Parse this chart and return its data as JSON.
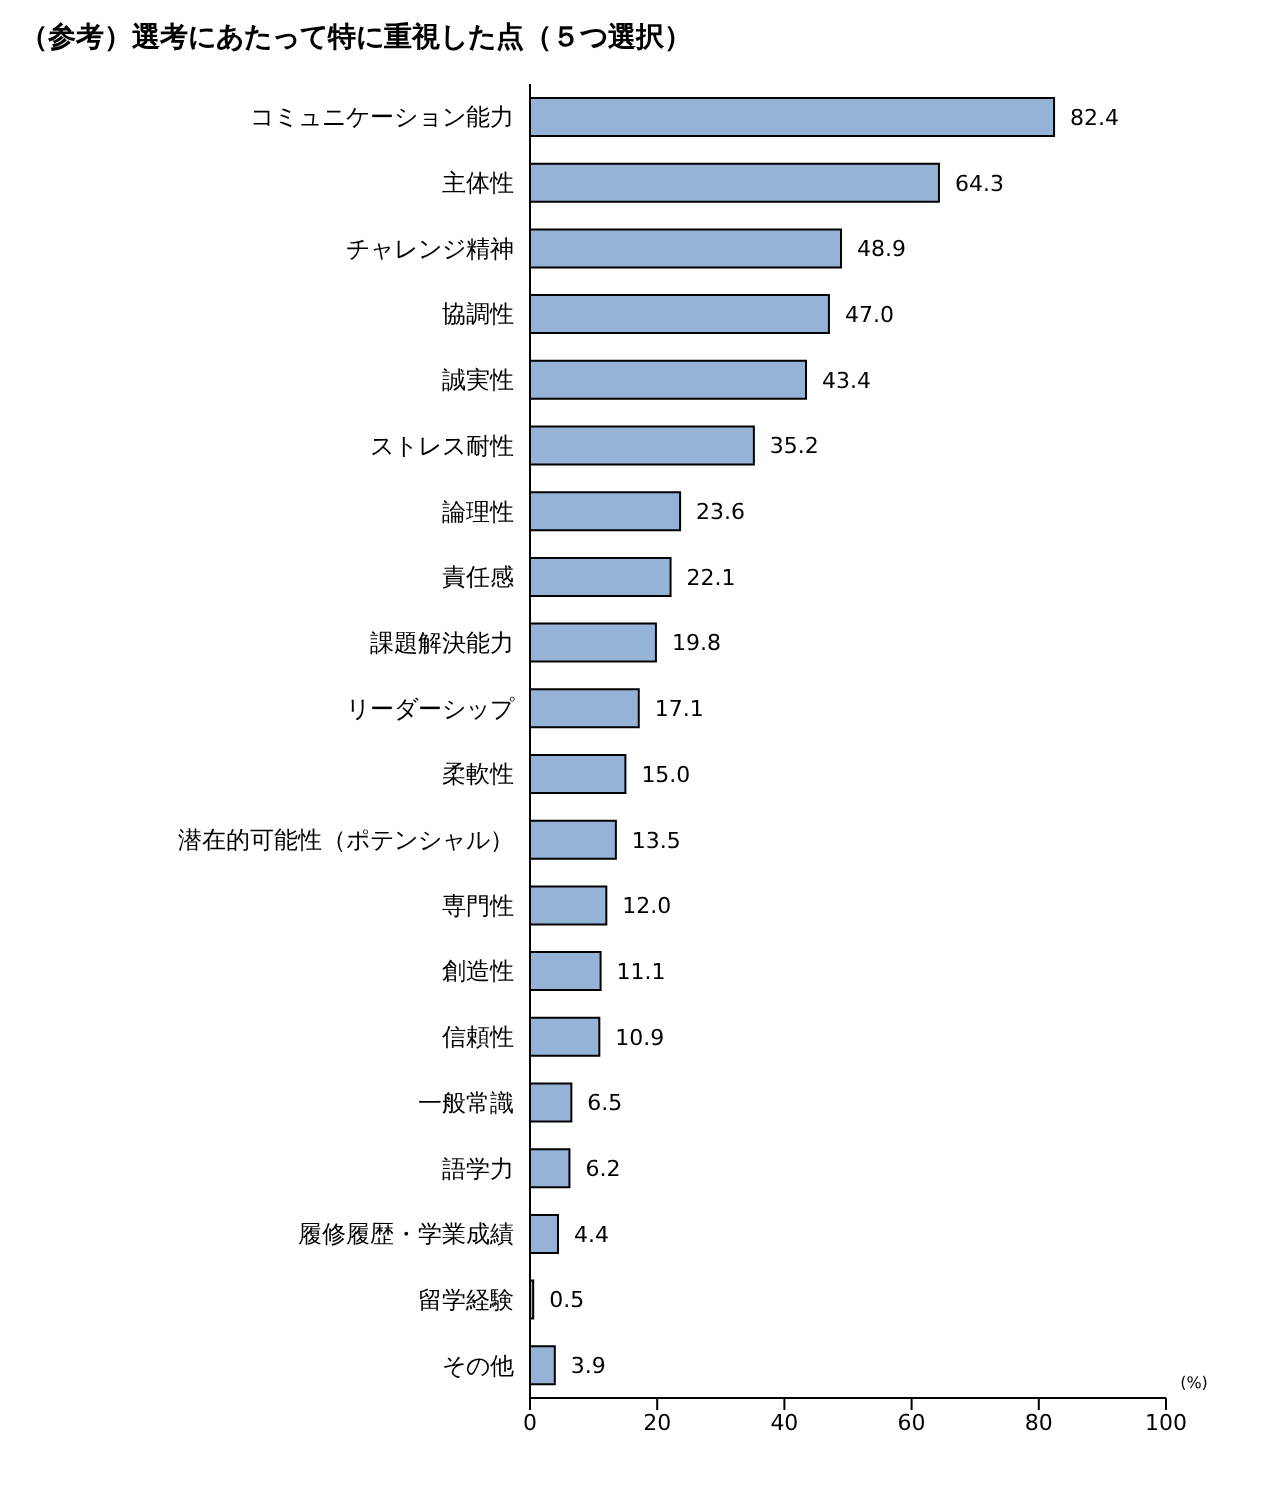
{
  "chart_data": {
    "type": "bar",
    "orientation": "horizontal",
    "title": "（参考）選考にあたって特に重視した点（５つ選択）",
    "xlabel": "(%)",
    "categories": [
      "コミュニケーション能力",
      "主体性",
      "チャレンジ精神",
      "協調性",
      "誠実性",
      "ストレス耐性",
      "論理性",
      "責任感",
      "課題解決能力",
      "リーダーシップ",
      "柔軟性",
      "潜在的可能性（ポテンシャル）",
      "専門性",
      "創造性",
      "信頼性",
      "一般常識",
      "語学力",
      "履修履歴・学業成績",
      "留学経験",
      "その他"
    ],
    "values": [
      82.4,
      64.3,
      48.9,
      47.0,
      43.4,
      35.2,
      23.6,
      22.1,
      19.8,
      17.1,
      15.0,
      13.5,
      12.0,
      11.1,
      10.9,
      6.5,
      6.2,
      4.4,
      0.5,
      3.9
    ],
    "value_labels": [
      "82.4",
      "64.3",
      "48.9",
      "47.0",
      "43.4",
      "35.2",
      "23.6",
      "22.1",
      "19.8",
      "17.1",
      "15.0",
      "13.5",
      "12.0",
      "11.1",
      "10.9",
      "6.5",
      "6.2",
      "4.4",
      "0.5",
      "3.9"
    ],
    "color": "#95b3d7",
    "xlim": [
      0,
      100
    ],
    "xticks": [
      0,
      20,
      40,
      60,
      80,
      100
    ],
    "grid": false
  }
}
